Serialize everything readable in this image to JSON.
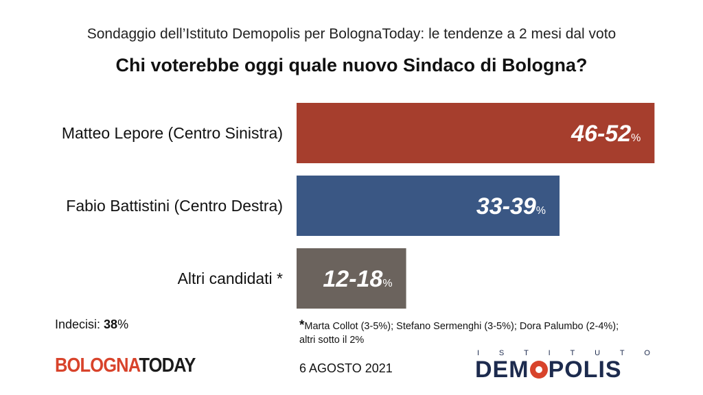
{
  "header": {
    "subtitle": "Sondaggio dell’Istituto Demopolis per BolognaToday: le tendenze a 2 mesi dal voto",
    "title": "Chi voterebbe oggi quale nuovo Sindaco di Bologna?"
  },
  "chart_data": {
    "type": "bar",
    "orientation": "horizontal",
    "categories": [
      "Matteo Lepore (Centro Sinistra)",
      "Fabio Battistini (Centro Destra)",
      "Altri candidati *"
    ],
    "ranges": [
      [
        46,
        52
      ],
      [
        33,
        39
      ],
      [
        12,
        18
      ]
    ],
    "values": [
      49,
      36,
      15
    ],
    "value_labels": [
      "46-52",
      "33-39",
      "12-18"
    ],
    "unit": "%",
    "colors": [
      "#a63e2d",
      "#3a5784",
      "#6b635d"
    ],
    "grid": false,
    "legend": "none"
  },
  "undecided": {
    "label": "Indecisi: ",
    "value": "38",
    "unit": "%"
  },
  "footnote": {
    "star": "*",
    "line1": "Marta Collot (3-5%); Stefano Sermenghi (3-5%); Dora Palumbo (2-4%);",
    "line2": "altri sotto il 2%"
  },
  "footer": {
    "brand_left_a": "BOLOGNA",
    "brand_left_b": "TODAY",
    "date": "6 AGOSTO 2021",
    "logo_top_letters": [
      "I",
      "S",
      "T",
      "I",
      "T",
      "U",
      "T",
      "O"
    ],
    "logo_main_a": "DEM",
    "logo_main_b": "POLIS",
    "logo_colors": {
      "navy": "#1d2b4e",
      "red": "#d8432b"
    }
  }
}
